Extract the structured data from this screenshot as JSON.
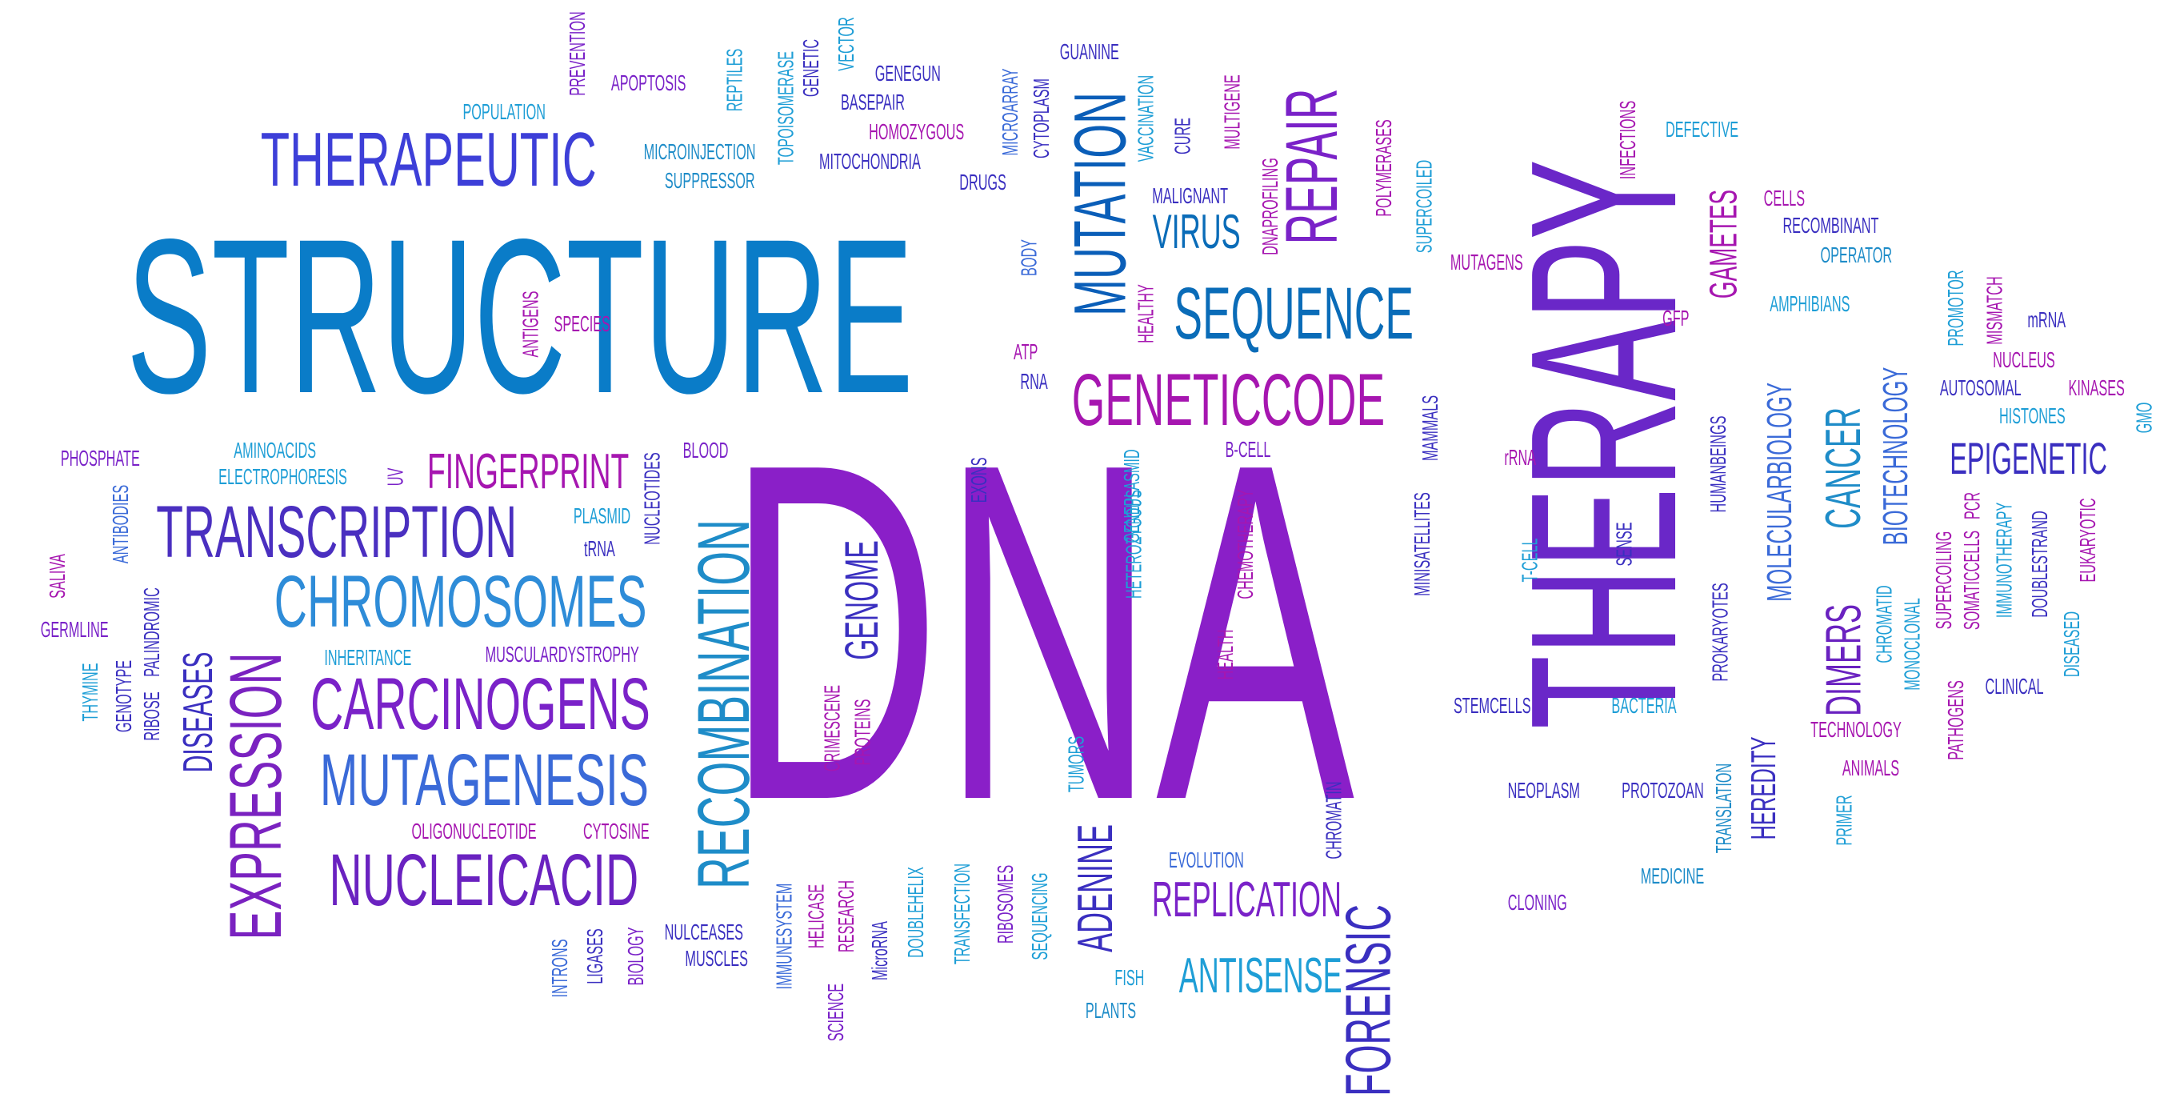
{
  "palette": {
    "blue": "#0A7CC8",
    "cyan": "#1E9ED6",
    "indigo": "#3A2FC0",
    "violet": "#7B2BD0",
    "purple": "#8A1FC8",
    "magenta": "#A616B0"
  },
  "words": [
    {
      "text": "DNA",
      "color": "#8A1FC8",
      "vertical": false
    },
    {
      "text": "STRUCTURE",
      "color": "#0A7CC8",
      "vertical": false
    },
    {
      "text": "THERAPY",
      "color": "#6A27C8",
      "vertical": true
    },
    {
      "text": "THERAPEUTIC",
      "color": "#3D3FD8",
      "vertical": false
    },
    {
      "text": "TRANSCRIPTION",
      "color": "#4A2FC0",
      "vertical": false
    },
    {
      "text": "CHROMOSOMES",
      "color": "#2E8CD8",
      "vertical": false
    },
    {
      "text": "CARCINOGENS",
      "color": "#7A22C8",
      "vertical": false
    },
    {
      "text": "MUTAGENESIS",
      "color": "#3A6AD8",
      "vertical": false
    },
    {
      "text": "NUCLEICACID",
      "color": "#6A22C0",
      "vertical": false
    },
    {
      "text": "EXPRESSION",
      "color": "#7A22C0",
      "vertical": true
    },
    {
      "text": "RECOMBINATION",
      "color": "#1E8CC8",
      "vertical": true
    },
    {
      "text": "GENETICCODE",
      "color": "#A616B0",
      "vertical": false
    },
    {
      "text": "SEQUENCE",
      "color": "#0A6CB8",
      "vertical": false
    },
    {
      "text": "MUTATION",
      "color": "#0A5EB8",
      "vertical": true
    },
    {
      "text": "REPAIR",
      "color": "#7A22C8",
      "vertical": true
    },
    {
      "text": "VIRUS",
      "color": "#0A6CB8",
      "vertical": false
    },
    {
      "text": "FINGERPRINT",
      "color": "#A616B0",
      "vertical": false
    },
    {
      "text": "FORENSIC",
      "color": "#3A2FC0",
      "vertical": true
    },
    {
      "text": "REPLICATION",
      "color": "#7A22C8",
      "vertical": false
    },
    {
      "text": "ANTISENSE",
      "color": "#1E9ED6",
      "vertical": false
    },
    {
      "text": "ADENINE",
      "color": "#3A2FC0",
      "vertical": true
    },
    {
      "text": "GENOME",
      "color": "#3A2FC0",
      "vertical": true
    },
    {
      "text": "EPIGENETIC",
      "color": "#3A2FC0",
      "vertical": false
    },
    {
      "text": "DIMERS",
      "color": "#6A22C0",
      "vertical": true
    },
    {
      "text": "CANCER",
      "color": "#1E8CC8",
      "vertical": true
    },
    {
      "text": "MOLECULARBIOLOGY",
      "color": "#3A6AD8",
      "vertical": true
    },
    {
      "text": "BIOTECHNOLOGY",
      "color": "#3A6AD8",
      "vertical": true
    },
    {
      "text": "HEREDITY",
      "color": "#3A2FC0",
      "vertical": true
    },
    {
      "text": "GAMETES",
      "color": "#A616B0",
      "vertical": true
    },
    {
      "text": "DISEASES",
      "color": "#3A2FC0",
      "vertical": true
    },
    {
      "text": "PHOSPHATE",
      "color": "#7A22C8",
      "vertical": false
    },
    {
      "text": "AMINOACIDS",
      "color": "#1E9ED6",
      "vertical": false
    },
    {
      "text": "ELECTROPHORESIS",
      "color": "#1E9ED6",
      "vertical": false
    },
    {
      "text": "UV",
      "color": "#7A22C8",
      "vertical": true
    },
    {
      "text": "BLOOD",
      "color": "#7A22C8",
      "vertical": false
    },
    {
      "text": "PLASMID",
      "color": "#1E9ED6",
      "vertical": false
    },
    {
      "text": "tRNA",
      "color": "#3A2FC0",
      "vertical": false
    },
    {
      "text": "NUCLEOTIDES",
      "color": "#3A2FC0",
      "vertical": true
    },
    {
      "text": "INHERITANCE",
      "color": "#1E9ED6",
      "vertical": false
    },
    {
      "text": "MUSCULARDYSTROPHY",
      "color": "#7A22C8",
      "vertical": false
    },
    {
      "text": "OLIGONUCLEOTIDE",
      "color": "#A616B0",
      "vertical": false
    },
    {
      "text": "CYTOSINE",
      "color": "#A616B0",
      "vertical": false
    },
    {
      "text": "ANTIBODIES",
      "color": "#3A6AD8",
      "vertical": true
    },
    {
      "text": "SALIVA",
      "color": "#A616B0",
      "vertical": true
    },
    {
      "text": "GERMLINE",
      "color": "#7A22C8",
      "vertical": false
    },
    {
      "text": "THYMINE",
      "color": "#1E9ED6",
      "vertical": true
    },
    {
      "text": "GENOTYPE",
      "color": "#3A2FC0",
      "vertical": true
    },
    {
      "text": "RIBOSE",
      "color": "#3A2FC0",
      "vertical": true
    },
    {
      "text": "PALINDROMIC",
      "color": "#3A2FC0",
      "vertical": true
    },
    {
      "text": "SPECIES",
      "color": "#A616B0",
      "vertical": false
    },
    {
      "text": "ANTIGENS",
      "color": "#A616B0",
      "vertical": true
    },
    {
      "text": "POPULATION",
      "color": "#1E9ED6",
      "vertical": false
    },
    {
      "text": "PREVENTION",
      "color": "#7A22C8",
      "vertical": true
    },
    {
      "text": "APOPTOSIS",
      "color": "#7A22C8",
      "vertical": false
    },
    {
      "text": "REPTILES",
      "color": "#1E9ED6",
      "vertical": true
    },
    {
      "text": "TOPOISOMERASE",
      "color": "#1E9ED6",
      "vertical": true
    },
    {
      "text": "GENETIC",
      "color": "#3A2FC0",
      "vertical": true
    },
    {
      "text": "VECTOR",
      "color": "#1E9ED6",
      "vertical": true
    },
    {
      "text": "GENEGUN",
      "color": "#3A2FC0",
      "vertical": false
    },
    {
      "text": "BASEPAIR",
      "color": "#3A2FC0",
      "vertical": false
    },
    {
      "text": "HOMOZYGOUS",
      "color": "#A616B0",
      "vertical": false
    },
    {
      "text": "MITOCHONDRIA",
      "color": "#3A2FC0",
      "vertical": false
    },
    {
      "text": "MICROINJECTION",
      "color": "#1E8CC8",
      "vertical": false
    },
    {
      "text": "SUPPRESSOR",
      "color": "#1E8CC8",
      "vertical": false
    },
    {
      "text": "DRUGS",
      "color": "#3A2FC0",
      "vertical": false
    },
    {
      "text": "MICROARRAY",
      "color": "#3A6AD8",
      "vertical": true
    },
    {
      "text": "CYTOPLASM",
      "color": "#3A2FC0",
      "vertical": true
    },
    {
      "text": "GUANINE",
      "color": "#3A2FC0",
      "vertical": false
    },
    {
      "text": "VACCINATION",
      "color": "#1E9ED6",
      "vertical": true
    },
    {
      "text": "CURE",
      "color": "#3A2FC0",
      "vertical": true
    },
    {
      "text": "MULTIGENE",
      "color": "#A616B0",
      "vertical": true
    },
    {
      "text": "MALIGNANT",
      "color": "#3A2FC0",
      "vertical": false
    },
    {
      "text": "DNAPROFILING",
      "color": "#A616B0",
      "vertical": true
    },
    {
      "text": "POLYMERASES",
      "color": "#A616B0",
      "vertical": true
    },
    {
      "text": "SUPERCOILED",
      "color": "#1E9ED6",
      "vertical": true
    },
    {
      "text": "MUTAGENS",
      "color": "#A616B0",
      "vertical": false
    },
    {
      "text": "INFECTIONS",
      "color": "#A616B0",
      "vertical": true
    },
    {
      "text": "DEFECTIVE",
      "color": "#1E9ED6",
      "vertical": false
    },
    {
      "text": "BODY",
      "color": "#3A6AD8",
      "vertical": true
    },
    {
      "text": "HEALTHY",
      "color": "#A616B0",
      "vertical": true
    },
    {
      "text": "ATP",
      "color": "#A616B0",
      "vertical": false
    },
    {
      "text": "RNA",
      "color": "#3A2FC0",
      "vertical": false
    },
    {
      "text": "EXONS",
      "color": "#3A2FC0",
      "vertical": true
    },
    {
      "text": "GENEPLASMID",
      "color": "#1E9ED6",
      "vertical": true
    },
    {
      "text": "HETEROZYGOUS",
      "color": "#1E9ED6",
      "vertical": true
    },
    {
      "text": "B-CELL",
      "color": "#7A22C8",
      "vertical": false
    },
    {
      "text": "CHEMOTHERAPY",
      "color": "#A616B0",
      "vertical": true
    },
    {
      "text": "MAMMALS",
      "color": "#3A2FC0",
      "vertical": true
    },
    {
      "text": "MINISATELLITES",
      "color": "#3A2FC0",
      "vertical": true
    },
    {
      "text": "rRNA",
      "color": "#A616B0",
      "vertical": false
    },
    {
      "text": "T-CELL",
      "color": "#1E9ED6",
      "vertical": true
    },
    {
      "text": "SENSE",
      "color": "#3A2FC0",
      "vertical": true
    },
    {
      "text": "HEALTH",
      "color": "#A616B0",
      "vertical": true
    },
    {
      "text": "STEMCELLS",
      "color": "#3A2FC0",
      "vertical": false
    },
    {
      "text": "BACTERIA",
      "color": "#1E9ED6",
      "vertical": false
    },
    {
      "text": "CRIMESCENE",
      "color": "#A616B0",
      "vertical": true
    },
    {
      "text": "PROTEINS",
      "color": "#A616B0",
      "vertical": true
    },
    {
      "text": "TUMORS",
      "color": "#1E9ED6",
      "vertical": true
    },
    {
      "text": "NEOPLASM",
      "color": "#3A2FC0",
      "vertical": false
    },
    {
      "text": "PROTOZOAN",
      "color": "#3A2FC0",
      "vertical": false
    },
    {
      "text": "CHROMATIN",
      "color": "#3A2FC0",
      "vertical": true
    },
    {
      "text": "EVOLUTION",
      "color": "#3A6AD8",
      "vertical": false
    },
    {
      "text": "MEDICINE",
      "color": "#1E8CC8",
      "vertical": false
    },
    {
      "text": "CLONING",
      "color": "#7A22C8",
      "vertical": false
    },
    {
      "text": "IMMUNESYSTEM",
      "color": "#3A6AD8",
      "vertical": true
    },
    {
      "text": "HELICASE",
      "color": "#A616B0",
      "vertical": true
    },
    {
      "text": "RESEARCH",
      "color": "#A616B0",
      "vertical": true
    },
    {
      "text": "MicroRNA",
      "color": "#3A2FC0",
      "vertical": true
    },
    {
      "text": "DOUBLEHELIX",
      "color": "#1E9ED6",
      "vertical": true
    },
    {
      "text": "TRANSFECTION",
      "color": "#1E9ED6",
      "vertical": true
    },
    {
      "text": "RIBOSOMES",
      "color": "#7A22C8",
      "vertical": true
    },
    {
      "text": "SEQUENCING",
      "color": "#1E9ED6",
      "vertical": true
    },
    {
      "text": "FISH",
      "color": "#1E9ED6",
      "vertical": false
    },
    {
      "text": "PLANTS",
      "color": "#1E8CC8",
      "vertical": false
    },
    {
      "text": "SCIENCE",
      "color": "#7A22C8",
      "vertical": true
    },
    {
      "text": "INTRONS",
      "color": "#3A6AD8",
      "vertical": true
    },
    {
      "text": "LIGASES",
      "color": "#3A2FC0",
      "vertical": true
    },
    {
      "text": "BIOLOGY",
      "color": "#7A22C8",
      "vertical": true
    },
    {
      "text": "NULCEASES",
      "color": "#3A2FC0",
      "vertical": false
    },
    {
      "text": "MUSCLES",
      "color": "#3A2FC0",
      "vertical": false
    },
    {
      "text": "CELLS",
      "color": "#A616B0",
      "vertical": false
    },
    {
      "text": "RECOMBINANT",
      "color": "#3A2FC0",
      "vertical": false
    },
    {
      "text": "OPERATOR",
      "color": "#1E8CC8",
      "vertical": false
    },
    {
      "text": "GFP",
      "color": "#A616B0",
      "vertical": false
    },
    {
      "text": "AMPHIBIANS",
      "color": "#1E9ED6",
      "vertical": false
    },
    {
      "text": "PROMOTOR",
      "color": "#1E9ED6",
      "vertical": true
    },
    {
      "text": "MISMATCH",
      "color": "#A616B0",
      "vertical": true
    },
    {
      "text": "mRNA",
      "color": "#3A2FC0",
      "vertical": false
    },
    {
      "text": "NUCLEUS",
      "color": "#A616B0",
      "vertical": false
    },
    {
      "text": "AUTOSOMAL",
      "color": "#3A2FC0",
      "vertical": false
    },
    {
      "text": "KINASES",
      "color": "#A616B0",
      "vertical": false
    },
    {
      "text": "HISTONES",
      "color": "#1E9ED6",
      "vertical": false
    },
    {
      "text": "GMO",
      "color": "#1E9ED6",
      "vertical": true
    },
    {
      "text": "HUMANBEINGS",
      "color": "#3A2FC0",
      "vertical": true
    },
    {
      "text": "PROKARYOTES",
      "color": "#3A2FC0",
      "vertical": true
    },
    {
      "text": "CHROMATID",
      "color": "#1E9ED6",
      "vertical": true
    },
    {
      "text": "MONOCLONAL",
      "color": "#1E9ED6",
      "vertical": true
    },
    {
      "text": "SUPERCOILING",
      "color": "#A616B0",
      "vertical": true
    },
    {
      "text": "SOMATICCELLS",
      "color": "#A616B0",
      "vertical": true
    },
    {
      "text": "PCR",
      "color": "#A616B0",
      "vertical": true
    },
    {
      "text": "IMMUNOTHERAPY",
      "color": "#1E9ED6",
      "vertical": true
    },
    {
      "text": "DOUBLESTRAND",
      "color": "#3A2FC0",
      "vertical": true
    },
    {
      "text": "EUKARYOTIC",
      "color": "#A616B0",
      "vertical": true
    },
    {
      "text": "DISEASED",
      "color": "#1E9ED6",
      "vertical": true
    },
    {
      "text": "CLINICAL",
      "color": "#3A2FC0",
      "vertical": false
    },
    {
      "text": "PATHOGENS",
      "color": "#A616B0",
      "vertical": true
    },
    {
      "text": "TECHNOLOGY",
      "color": "#A616B0",
      "vertical": false
    },
    {
      "text": "ANIMALS",
      "color": "#A616B0",
      "vertical": false
    },
    {
      "text": "PRIMER",
      "color": "#1E9ED6",
      "vertical": true
    },
    {
      "text": "TRANSLATION",
      "color": "#1E8CC8",
      "vertical": true
    }
  ]
}
